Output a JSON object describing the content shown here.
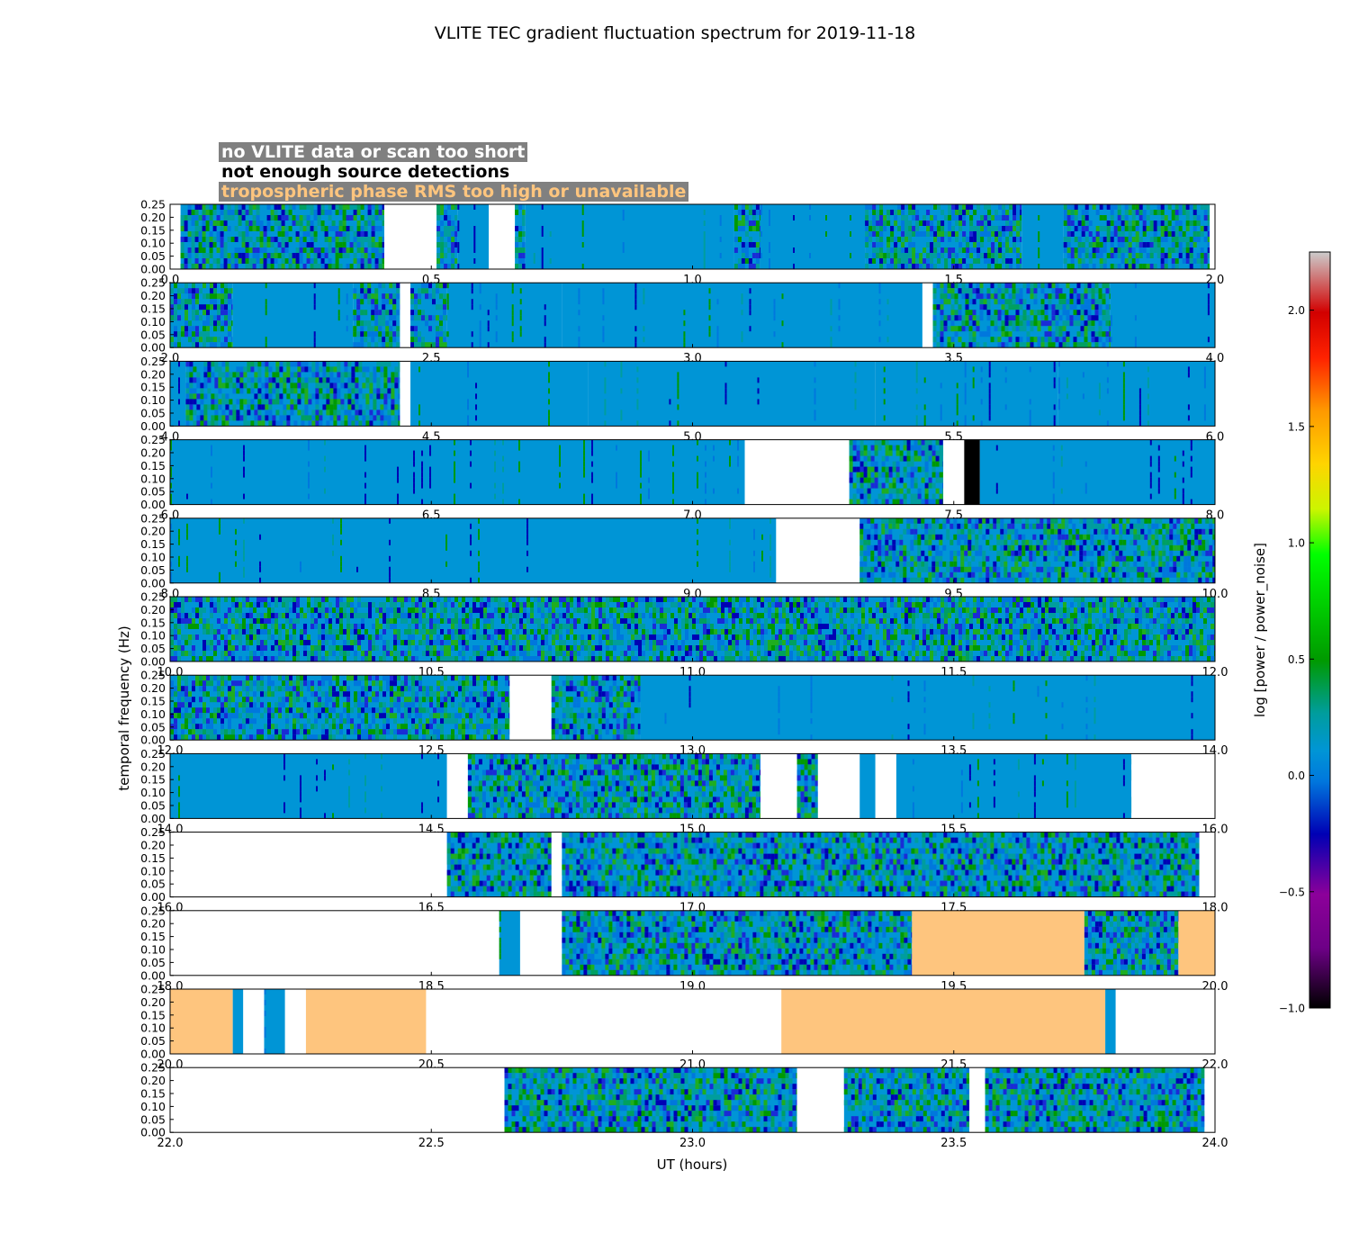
{
  "chart_data": {
    "type": "heatmap",
    "title": "VLITE TEC gradient fluctuation spectrum for 2019-11-18",
    "xlabel": "UT (hours)",
    "ylabel": "temporal frequency (Hz)",
    "colorbar_label": "log [power / power_noise]",
    "colorbar_range": [
      -1.0,
      2.25
    ],
    "colorbar_ticks": [
      "−1.0",
      "−0.5",
      "0.0",
      "0.5",
      "1.0",
      "1.5",
      "2.0"
    ],
    "colorbar_tick_values": [
      -1.0,
      -0.5,
      0.0,
      0.5,
      1.0,
      1.5,
      2.0
    ],
    "ylim": [
      0.0,
      0.25
    ],
    "ytick_labels": [
      "0.00",
      "0.05",
      "0.10",
      "0.15",
      "0.20",
      "0.25"
    ],
    "legend": [
      {
        "label": "no VLITE data or scan too short",
        "fill": "#ffffff",
        "text_color": "#ffffff",
        "box_color": "#808080"
      },
      {
        "label": "not enough source detections",
        "fill": "#000000",
        "text_color": "#000000",
        "box_color": "#ffffff"
      },
      {
        "label": "tropospheric phase RMS too high or unavailable",
        "fill": "#fec57e",
        "text_color": "#fec57e",
        "box_color": "#808080"
      }
    ],
    "state_colors": {
      "calm": "#0095d6",
      "nodata": "#ffffff",
      "few": "#000000",
      "tropo": "#fec57e"
    },
    "panels": [
      {
        "xlim": [
          0.0,
          2.0
        ],
        "xticks": [
          "0.0",
          "0.5",
          "1.0",
          "1.5",
          "2.0"
        ],
        "segments": [
          {
            "x0": 0.0,
            "x1": 0.02,
            "state": "nodata"
          },
          {
            "x0": 0.02,
            "x1": 0.41,
            "state": "busy"
          },
          {
            "x0": 0.41,
            "x1": 0.51,
            "state": "nodata"
          },
          {
            "x0": 0.51,
            "x1": 0.55,
            "state": "busy"
          },
          {
            "x0": 0.55,
            "x1": 0.61,
            "state": "calm"
          },
          {
            "x0": 0.61,
            "x1": 0.66,
            "state": "nodata"
          },
          {
            "x0": 0.66,
            "x1": 0.68,
            "state": "busy"
          },
          {
            "x0": 0.68,
            "x1": 1.08,
            "state": "calm"
          },
          {
            "x0": 1.08,
            "x1": 1.13,
            "state": "busy"
          },
          {
            "x0": 1.13,
            "x1": 1.33,
            "state": "calm"
          },
          {
            "x0": 1.33,
            "x1": 1.63,
            "state": "busy"
          },
          {
            "x0": 1.63,
            "x1": 1.71,
            "state": "calm"
          },
          {
            "x0": 1.71,
            "x1": 1.99,
            "state": "busy"
          },
          {
            "x0": 1.99,
            "x1": 2.0,
            "state": "nodata"
          }
        ]
      },
      {
        "xlim": [
          2.0,
          4.0
        ],
        "xticks": [
          "2.0",
          "2.5",
          "3.0",
          "3.5",
          "4.0"
        ],
        "segments": [
          {
            "x0": 2.0,
            "x1": 2.12,
            "state": "busy"
          },
          {
            "x0": 2.12,
            "x1": 2.35,
            "state": "calm"
          },
          {
            "x0": 2.35,
            "x1": 2.44,
            "state": "busy"
          },
          {
            "x0": 2.44,
            "x1": 2.46,
            "state": "nodata"
          },
          {
            "x0": 2.46,
            "x1": 2.53,
            "state": "busy"
          },
          {
            "x0": 2.53,
            "x1": 2.75,
            "state": "calm"
          },
          {
            "x0": 2.75,
            "x1": 3.0,
            "state": "calm"
          },
          {
            "x0": 3.0,
            "x1": 3.44,
            "state": "calm"
          },
          {
            "x0": 3.44,
            "x1": 3.46,
            "state": "nodata"
          },
          {
            "x0": 3.46,
            "x1": 3.8,
            "state": "busy"
          },
          {
            "x0": 3.8,
            "x1": 4.0,
            "state": "calm"
          }
        ]
      },
      {
        "xlim": [
          4.0,
          6.0
        ],
        "xticks": [
          "4.0",
          "4.5",
          "5.0",
          "5.5",
          "6.0"
        ],
        "segments": [
          {
            "x0": 4.0,
            "x1": 4.03,
            "state": "calm"
          },
          {
            "x0": 4.03,
            "x1": 4.44,
            "state": "busy"
          },
          {
            "x0": 4.44,
            "x1": 4.46,
            "state": "nodata"
          },
          {
            "x0": 4.46,
            "x1": 4.8,
            "state": "calm"
          },
          {
            "x0": 4.8,
            "x1": 5.0,
            "state": "calm"
          },
          {
            "x0": 5.0,
            "x1": 5.35,
            "state": "calm"
          },
          {
            "x0": 5.35,
            "x1": 5.7,
            "state": "calm"
          },
          {
            "x0": 5.7,
            "x1": 6.0,
            "state": "calm"
          }
        ]
      },
      {
        "xlim": [
          6.0,
          8.0
        ],
        "xticks": [
          "6.0",
          "6.5",
          "7.0",
          "7.5",
          "8.0"
        ],
        "segments": [
          {
            "x0": 6.0,
            "x1": 7.1,
            "state": "calm"
          },
          {
            "x0": 7.1,
            "x1": 7.3,
            "state": "nodata"
          },
          {
            "x0": 7.3,
            "x1": 7.48,
            "state": "busy"
          },
          {
            "x0": 7.48,
            "x1": 7.52,
            "state": "nodata"
          },
          {
            "x0": 7.52,
            "x1": 7.55,
            "state": "few"
          },
          {
            "x0": 7.55,
            "x1": 8.0,
            "state": "calm"
          }
        ]
      },
      {
        "xlim": [
          8.0,
          10.0
        ],
        "xticks": [
          "8.0",
          "8.5",
          "9.0",
          "9.5",
          "10.0"
        ],
        "segments": [
          {
            "x0": 8.0,
            "x1": 9.16,
            "state": "calm"
          },
          {
            "x0": 9.16,
            "x1": 9.32,
            "state": "nodata"
          },
          {
            "x0": 9.32,
            "x1": 10.0,
            "state": "busy"
          }
        ]
      },
      {
        "xlim": [
          10.0,
          12.0
        ],
        "xticks": [
          "10.0",
          "10.5",
          "11.0",
          "11.5",
          "12.0"
        ],
        "segments": [
          {
            "x0": 10.0,
            "x1": 12.0,
            "state": "busy"
          }
        ]
      },
      {
        "xlim": [
          12.0,
          14.0
        ],
        "xticks": [
          "12.0",
          "12.5",
          "13.0",
          "13.5",
          "14.0"
        ],
        "segments": [
          {
            "x0": 12.0,
            "x1": 12.65,
            "state": "busy"
          },
          {
            "x0": 12.65,
            "x1": 12.73,
            "state": "nodata"
          },
          {
            "x0": 12.73,
            "x1": 12.9,
            "state": "busy"
          },
          {
            "x0": 12.9,
            "x1": 14.0,
            "state": "calm"
          }
        ]
      },
      {
        "xlim": [
          14.0,
          16.0
        ],
        "xticks": [
          "14.0",
          "14.5",
          "15.0",
          "15.5",
          "16.0"
        ],
        "segments": [
          {
            "x0": 14.0,
            "x1": 14.53,
            "state": "calm"
          },
          {
            "x0": 14.53,
            "x1": 14.57,
            "state": "nodata"
          },
          {
            "x0": 14.57,
            "x1": 15.13,
            "state": "busy"
          },
          {
            "x0": 15.13,
            "x1": 15.2,
            "state": "nodata"
          },
          {
            "x0": 15.2,
            "x1": 15.24,
            "state": "busy"
          },
          {
            "x0": 15.24,
            "x1": 15.32,
            "state": "nodata"
          },
          {
            "x0": 15.32,
            "x1": 15.35,
            "state": "calm"
          },
          {
            "x0": 15.35,
            "x1": 15.39,
            "state": "nodata"
          },
          {
            "x0": 15.39,
            "x1": 15.84,
            "state": "calm"
          },
          {
            "x0": 15.84,
            "x1": 16.0,
            "state": "nodata"
          }
        ]
      },
      {
        "xlim": [
          16.0,
          18.0
        ],
        "xticks": [
          "16.0",
          "16.5",
          "17.0",
          "17.5",
          "18.0"
        ],
        "segments": [
          {
            "x0": 16.0,
            "x1": 16.53,
            "state": "nodata"
          },
          {
            "x0": 16.53,
            "x1": 16.73,
            "state": "busy"
          },
          {
            "x0": 16.73,
            "x1": 16.75,
            "state": "nodata"
          },
          {
            "x0": 16.75,
            "x1": 17.97,
            "state": "busy"
          },
          {
            "x0": 17.97,
            "x1": 18.0,
            "state": "nodata"
          }
        ]
      },
      {
        "xlim": [
          18.0,
          20.0
        ],
        "xticks": [
          "18.0",
          "18.5",
          "19.0",
          "19.5",
          "20.0"
        ],
        "segments": [
          {
            "x0": 18.0,
            "x1": 18.63,
            "state": "nodata"
          },
          {
            "x0": 18.63,
            "x1": 18.67,
            "state": "calm"
          },
          {
            "x0": 18.67,
            "x1": 18.75,
            "state": "nodata"
          },
          {
            "x0": 18.75,
            "x1": 19.42,
            "state": "busy"
          },
          {
            "x0": 19.42,
            "x1": 19.75,
            "state": "tropo"
          },
          {
            "x0": 19.75,
            "x1": 19.93,
            "state": "busy"
          },
          {
            "x0": 19.93,
            "x1": 20.0,
            "state": "tropo"
          }
        ]
      },
      {
        "xlim": [
          20.0,
          22.0
        ],
        "xticks": [
          "20.0",
          "20.5",
          "21.0",
          "21.5",
          "22.0"
        ],
        "segments": [
          {
            "x0": 20.0,
            "x1": 20.12,
            "state": "tropo"
          },
          {
            "x0": 20.12,
            "x1": 20.14,
            "state": "calm"
          },
          {
            "x0": 20.14,
            "x1": 20.18,
            "state": "nodata"
          },
          {
            "x0": 20.18,
            "x1": 20.22,
            "state": "calm"
          },
          {
            "x0": 20.22,
            "x1": 20.26,
            "state": "nodata"
          },
          {
            "x0": 20.26,
            "x1": 20.49,
            "state": "tropo"
          },
          {
            "x0": 20.49,
            "x1": 21.17,
            "state": "nodata"
          },
          {
            "x0": 21.17,
            "x1": 21.79,
            "state": "tropo"
          },
          {
            "x0": 21.79,
            "x1": 21.81,
            "state": "calm"
          },
          {
            "x0": 21.81,
            "x1": 22.0,
            "state": "nodata"
          }
        ]
      },
      {
        "xlim": [
          22.0,
          24.0
        ],
        "xticks": [
          "22.0",
          "22.5",
          "23.0",
          "23.5",
          "24.0"
        ],
        "segments": [
          {
            "x0": 22.0,
            "x1": 22.64,
            "state": "nodata"
          },
          {
            "x0": 22.64,
            "x1": 23.2,
            "state": "busy"
          },
          {
            "x0": 23.2,
            "x1": 23.29,
            "state": "nodata"
          },
          {
            "x0": 23.29,
            "x1": 23.53,
            "state": "busy"
          },
          {
            "x0": 23.53,
            "x1": 23.56,
            "state": "nodata"
          },
          {
            "x0": 23.56,
            "x1": 23.98,
            "state": "busy"
          },
          {
            "x0": 23.98,
            "x1": 24.0,
            "state": "nodata"
          }
        ]
      }
    ]
  }
}
